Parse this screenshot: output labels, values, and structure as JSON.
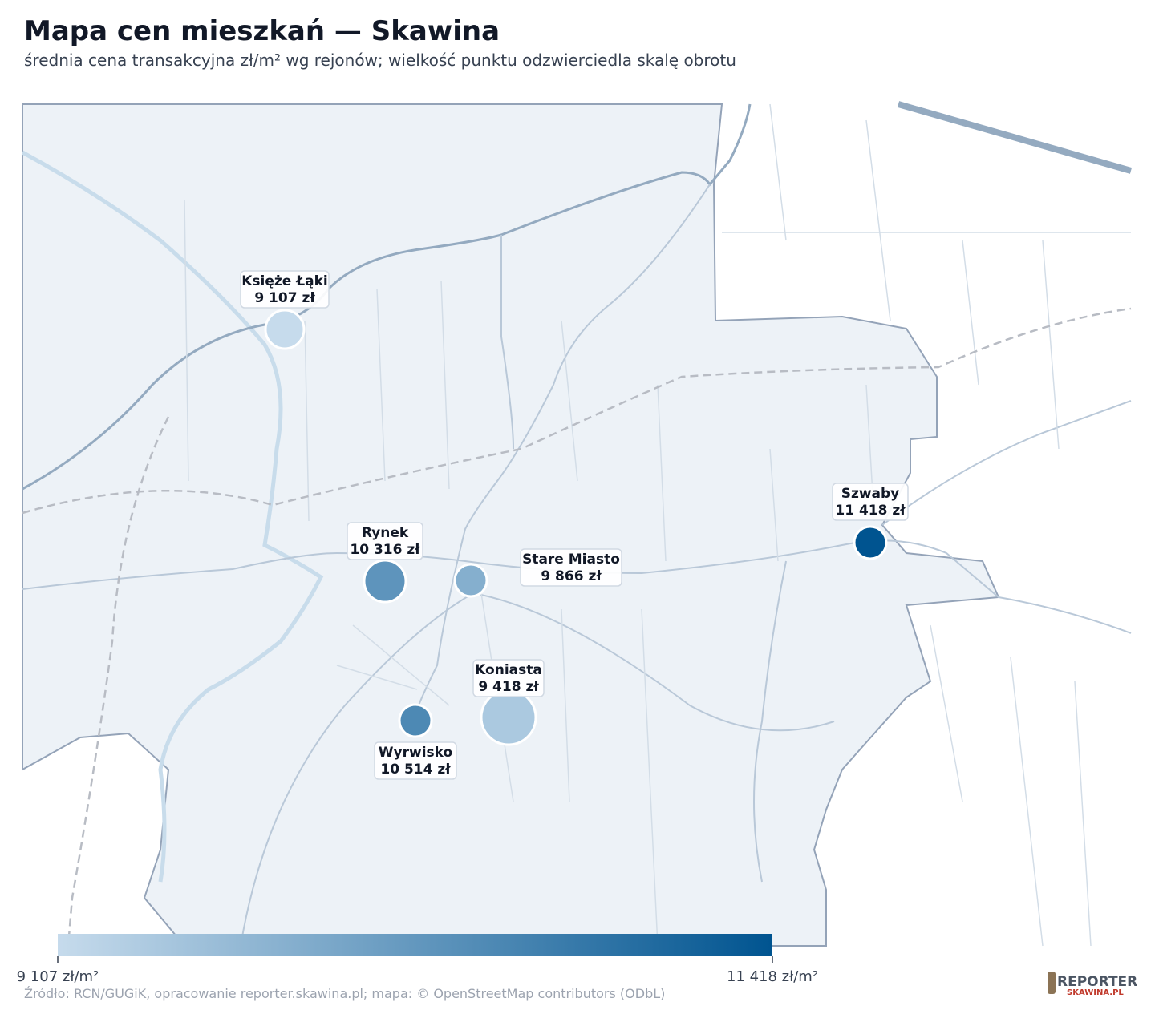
{
  "header": {
    "title": "Mapa cen mieszkań — Skawina",
    "subtitle": "średnia cena transakcyjna zł/m² wg rejonów; wielkość punktu odzwierciedla skalę obrotu"
  },
  "points": [
    {
      "name": "Księże Łąki",
      "price": 9107,
      "price_label": "9 107 zł"
    },
    {
      "name": "Rynek",
      "price": 10316,
      "price_label": "10 316 zł"
    },
    {
      "name": "Stare Miasto",
      "price": 9866,
      "price_label": "9 866 zł"
    },
    {
      "name": "Szwaby",
      "price": 11418,
      "price_label": "11 418 zł"
    },
    {
      "name": "Koniasta",
      "price": 9418,
      "price_label": "9 418 zł"
    },
    {
      "name": "Wyrwisko",
      "price": 10514,
      "price_label": "10 514 zł"
    }
  ],
  "scale": {
    "min": 9107,
    "min_label": "9 107 zł/m²",
    "max": 11418,
    "max_label": "11 418 zł/m²",
    "color_low": "#c6dbec",
    "color_high": "#005490"
  },
  "footer": {
    "source": "Źródło: RCN/GUGiK, opracowanie reporter.skawina.pl; mapa: © OpenStreetMap contributors (ODbL)",
    "logo_top": "REPORTER",
    "logo_bottom": "SKAWINA.PL"
  }
}
